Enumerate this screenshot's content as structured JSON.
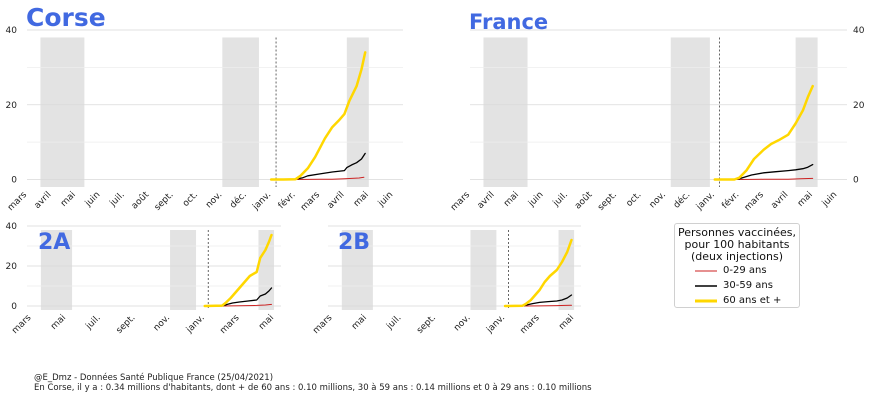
{
  "colors": {
    "title": "#4169e1",
    "grid": "#d9d9d9",
    "period_shade": "#e3e3e3",
    "series_0_29": "#cc2222",
    "series_30_59": "#000000",
    "series_60_plus": "#ffd700",
    "dashed_marker": "#000000"
  },
  "legend": {
    "title": "Personnes vaccinées,\npour 100 habitants\n(deux injections)",
    "items": [
      {
        "label": "0-29 ans",
        "color": "#cc2222"
      },
      {
        "label": "30-59 ans",
        "color": "#000000"
      },
      {
        "label": "60 ans et +",
        "color": "#ffd700"
      }
    ]
  },
  "footer": {
    "line1": "@E_Dmz - Données Santé Publique France (25/04/2021)",
    "line2": "En Corse, il y a : 0.34 millions d'habitants, dont + de 60 ans : 0.10 millions, 30 à 59 ans : 0.14 millions et 0 à 29 ans : 0.10 millions"
  },
  "chart_data": [
    {
      "id": "corse",
      "type": "line",
      "title": "Corse",
      "x_unit": "month index from March 2020",
      "xlim": [
        0,
        15.4
      ],
      "ylim": [
        -2,
        40
      ],
      "yticks": [
        0,
        20,
        40
      ],
      "ytick_side": "left",
      "xticks": [
        {
          "x": 0,
          "label": "mars"
        },
        {
          "x": 1,
          "label": "avril"
        },
        {
          "x": 2,
          "label": "mai"
        },
        {
          "x": 3,
          "label": "juin"
        },
        {
          "x": 4,
          "label": "juil."
        },
        {
          "x": 5,
          "label": "août"
        },
        {
          "x": 6,
          "label": "sept."
        },
        {
          "x": 7,
          "label": "oct."
        },
        {
          "x": 8,
          "label": "nov."
        },
        {
          "x": 9,
          "label": "déc."
        },
        {
          "x": 10,
          "label": "janv."
        },
        {
          "x": 11,
          "label": "févr."
        },
        {
          "x": 12,
          "label": "mars"
        },
        {
          "x": 13,
          "label": "avril"
        },
        {
          "x": 14,
          "label": "mai"
        },
        {
          "x": 15,
          "label": "juin"
        }
      ],
      "shaded_periods": [
        [
          0.55,
          2.35
        ],
        [
          8.0,
          9.5
        ],
        [
          13.1,
          14.0
        ]
      ],
      "vline_x": 10.2,
      "series": [
        {
          "name": "0-29 ans",
          "color": "#cc2222",
          "width": 1,
          "x": [
            10.0,
            11.0,
            12.0,
            12.5,
            13.0,
            13.3,
            13.6,
            13.8
          ],
          "y": [
            0,
            0,
            0.05,
            0.1,
            0.2,
            0.3,
            0.4,
            0.6
          ]
        },
        {
          "name": "30-59 ans",
          "color": "#000000",
          "width": 1.3,
          "x": [
            10.0,
            10.5,
            11.0,
            11.3,
            11.5,
            12.0,
            12.5,
            13.0,
            13.1,
            13.3,
            13.5,
            13.7,
            13.85
          ],
          "y": [
            0,
            0,
            0.1,
            0.5,
            1.0,
            1.5,
            2.0,
            2.4,
            3.2,
            3.9,
            4.5,
            5.5,
            7.0
          ]
        },
        {
          "name": "60 ans et +",
          "color": "#ffd700",
          "width": 2.5,
          "x": [
            10.0,
            10.5,
            11.0,
            11.2,
            11.5,
            11.8,
            12.0,
            12.2,
            12.5,
            12.8,
            13.0,
            13.2,
            13.5,
            13.7,
            13.85
          ],
          "y": [
            0,
            0,
            0.1,
            1.0,
            3.0,
            6.0,
            8.5,
            11.0,
            14.0,
            16.0,
            17.5,
            21.0,
            25.0,
            29.5,
            34.0
          ]
        }
      ]
    },
    {
      "id": "france",
      "type": "line",
      "title": "France",
      "x_unit": "month index from March 2020",
      "xlim": [
        0,
        15.4
      ],
      "ylim": [
        -2,
        40
      ],
      "yticks": [
        0,
        20,
        40
      ],
      "ytick_side": "right",
      "xticks": [
        {
          "x": 0,
          "label": "mars"
        },
        {
          "x": 1,
          "label": "avril"
        },
        {
          "x": 2,
          "label": "mai"
        },
        {
          "x": 3,
          "label": "juin"
        },
        {
          "x": 4,
          "label": "juil."
        },
        {
          "x": 5,
          "label": "août"
        },
        {
          "x": 6,
          "label": "sept."
        },
        {
          "x": 7,
          "label": "oct."
        },
        {
          "x": 8,
          "label": "nov."
        },
        {
          "x": 9,
          "label": "déc."
        },
        {
          "x": 10,
          "label": "janv."
        },
        {
          "x": 11,
          "label": "févr."
        },
        {
          "x": 12,
          "label": "mars"
        },
        {
          "x": 13,
          "label": "avril"
        },
        {
          "x": 14,
          "label": "mai"
        },
        {
          "x": 15,
          "label": "juin"
        }
      ],
      "shaded_periods": [
        [
          0.55,
          2.35
        ],
        [
          8.2,
          9.8
        ],
        [
          13.3,
          14.2
        ]
      ],
      "vline_x": 10.2,
      "series": [
        {
          "name": "0-29 ans",
          "color": "#cc2222",
          "width": 1,
          "x": [
            10.0,
            11.0,
            12.0,
            13.0,
            13.5,
            14.0
          ],
          "y": [
            0,
            0,
            0.05,
            0.1,
            0.2,
            0.3
          ]
        },
        {
          "name": "30-59 ans",
          "color": "#000000",
          "width": 1.3,
          "x": [
            10.0,
            10.8,
            11.0,
            11.5,
            12.0,
            12.5,
            13.0,
            13.3,
            13.6,
            13.8,
            14.0
          ],
          "y": [
            0,
            0,
            0.2,
            1.2,
            1.8,
            2.1,
            2.4,
            2.6,
            2.9,
            3.3,
            4.0
          ]
        },
        {
          "name": "60 ans et +",
          "color": "#ffd700",
          "width": 2.5,
          "x": [
            10.0,
            10.8,
            11.0,
            11.3,
            11.6,
            12.0,
            12.3,
            12.6,
            13.0,
            13.3,
            13.6,
            13.8,
            14.0
          ],
          "y": [
            0,
            0,
            0.5,
            2.5,
            5.5,
            8.0,
            9.5,
            10.5,
            12.0,
            15.0,
            18.5,
            22.0,
            25.0
          ]
        }
      ]
    },
    {
      "id": "2a",
      "type": "line",
      "title": "2A",
      "x_unit": "month index from March 2020",
      "xlim": [
        -0.25,
        14.4
      ],
      "ylim": [
        -2,
        40
      ],
      "yticks": [
        0,
        20,
        40
      ],
      "ytick_side": "left",
      "xticks": [
        {
          "x": 0,
          "label": "mars"
        },
        {
          "x": 2,
          "label": "mai"
        },
        {
          "x": 4,
          "label": "juil."
        },
        {
          "x": 6,
          "label": "sept."
        },
        {
          "x": 8,
          "label": "nov."
        },
        {
          "x": 10,
          "label": "janv."
        },
        {
          "x": 12,
          "label": "mars"
        },
        {
          "x": 14,
          "label": "mai"
        }
      ],
      "shaded_periods": [
        [
          0.55,
          2.35
        ],
        [
          8.0,
          9.5
        ],
        [
          13.1,
          14.0
        ]
      ],
      "vline_x": 10.2,
      "series": [
        {
          "name": "0-29 ans",
          "color": "#cc2222",
          "width": 1,
          "x": [
            10.0,
            11.0,
            12.0,
            13.0,
            13.5,
            13.85
          ],
          "y": [
            0,
            0,
            0.1,
            0.3,
            0.5,
            0.8
          ]
        },
        {
          "name": "30-59 ans",
          "color": "#000000",
          "width": 1.3,
          "x": [
            10.0,
            11.0,
            11.3,
            11.6,
            12.0,
            12.5,
            13.0,
            13.2,
            13.5,
            13.7,
            13.85
          ],
          "y": [
            0,
            0,
            0.8,
            1.5,
            2.0,
            2.5,
            3.0,
            5.0,
            6.0,
            7.5,
            9.0
          ]
        },
        {
          "name": "60 ans et +",
          "color": "#ffd700",
          "width": 2.5,
          "x": [
            10.0,
            11.0,
            11.2,
            11.5,
            12.0,
            12.3,
            12.6,
            13.0,
            13.2,
            13.5,
            13.7,
            13.85
          ],
          "y": [
            0,
            0.2,
            1.5,
            4.0,
            9.0,
            12.0,
            15.0,
            17.0,
            24.0,
            28.0,
            32.0,
            35.5
          ]
        }
      ]
    },
    {
      "id": "2b",
      "type": "line",
      "title": "2B",
      "x_unit": "month index from March 2020",
      "xlim": [
        -0.25,
        14.4
      ],
      "ylim": [
        -2,
        40
      ],
      "yticks": [
        0,
        20,
        40
      ],
      "ytick_side": "none",
      "xticks": [
        {
          "x": 0,
          "label": "mars"
        },
        {
          "x": 2,
          "label": "mai"
        },
        {
          "x": 4,
          "label": "juil."
        },
        {
          "x": 6,
          "label": "sept."
        },
        {
          "x": 8,
          "label": "nov."
        },
        {
          "x": 10,
          "label": "janv."
        },
        {
          "x": 12,
          "label": "mars"
        },
        {
          "x": 14,
          "label": "mai"
        }
      ],
      "shaded_periods": [
        [
          0.55,
          2.35
        ],
        [
          8.0,
          9.5
        ],
        [
          13.1,
          14.0
        ]
      ],
      "vline_x": 10.2,
      "series": [
        {
          "name": "0-29 ans",
          "color": "#cc2222",
          "width": 1,
          "x": [
            10.0,
            11.0,
            12.0,
            13.0,
            13.5,
            13.85
          ],
          "y": [
            0,
            0,
            0.05,
            0.2,
            0.3,
            0.4
          ]
        },
        {
          "name": "30-59 ans",
          "color": "#000000",
          "width": 1.3,
          "x": [
            10.0,
            11.0,
            11.3,
            11.6,
            12.0,
            12.5,
            13.0,
            13.3,
            13.6,
            13.85
          ],
          "y": [
            0,
            0,
            0.6,
            1.2,
            1.8,
            2.2,
            2.5,
            3.0,
            4.0,
            5.5
          ]
        },
        {
          "name": "60 ans et +",
          "color": "#ffd700",
          "width": 2.5,
          "x": [
            10.0,
            11.0,
            11.2,
            11.5,
            11.8,
            12.0,
            12.3,
            12.6,
            13.0,
            13.3,
            13.6,
            13.85
          ],
          "y": [
            0,
            0.1,
            1.0,
            3.0,
            6.0,
            8.0,
            12.0,
            15.0,
            18.0,
            22.0,
            27.0,
            33.0
          ]
        }
      ]
    }
  ]
}
